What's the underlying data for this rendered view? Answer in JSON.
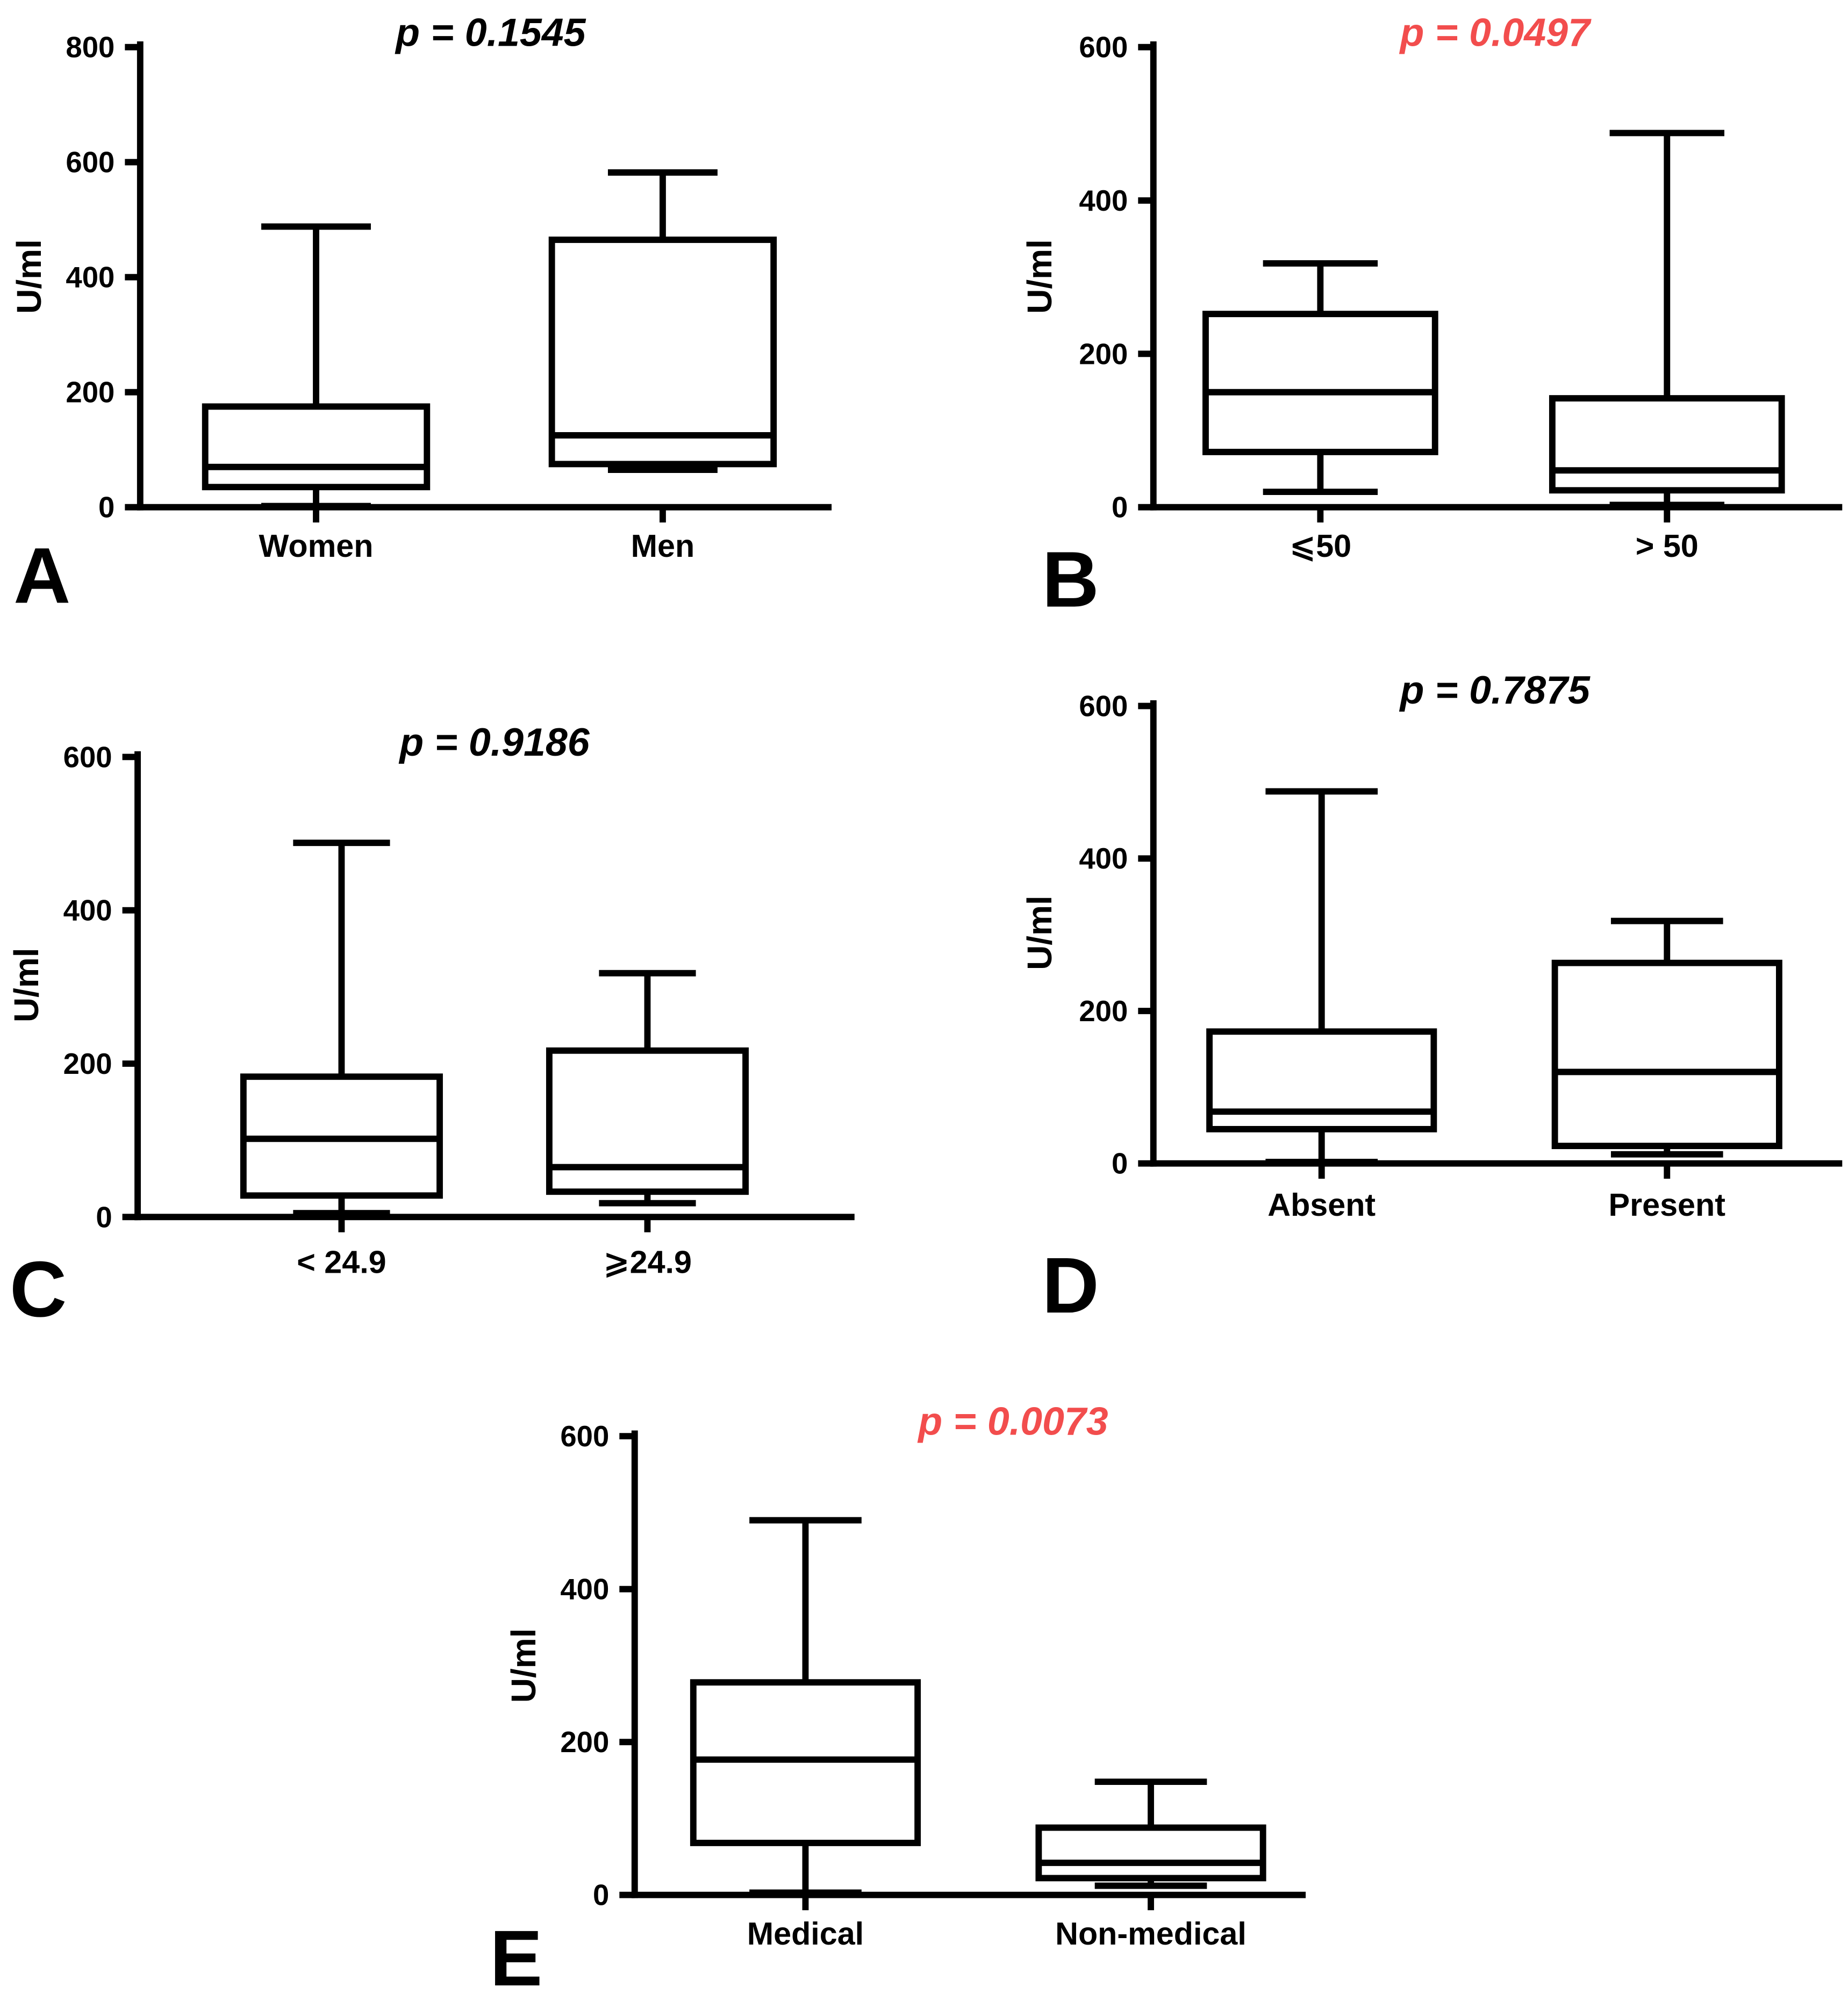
{
  "figure": {
    "text_color": "#000000",
    "significant_color": "#f24d4d"
  },
  "chart_data": [
    {
      "type": "box",
      "panel_label": "A",
      "pvalue": "p = 0.1545",
      "significant": false,
      "ylabel": "U/ml",
      "ylim": [
        0,
        800
      ],
      "yticks": [
        0,
        200,
        400,
        600,
        800
      ],
      "categories": [
        "Women",
        "Men"
      ],
      "boxes": [
        {
          "min": 2,
          "q1": 35,
          "median": 70,
          "q3": 175,
          "max": 488
        },
        {
          "min": 65,
          "q1": 75,
          "median": 125,
          "q3": 465,
          "max": 582
        }
      ]
    },
    {
      "type": "box",
      "panel_label": "B",
      "pvalue": "p = 0.0497",
      "significant": true,
      "ylabel": "U/ml",
      "ylim": [
        0,
        600
      ],
      "yticks": [
        0,
        200,
        400,
        600
      ],
      "categories": [
        "⩽50",
        "> 50"
      ],
      "boxes": [
        {
          "min": 20,
          "q1": 72,
          "median": 150,
          "q3": 252,
          "max": 318
        },
        {
          "min": 3,
          "q1": 22,
          "median": 48,
          "q3": 142,
          "max": 488
        }
      ]
    },
    {
      "type": "box",
      "panel_label": "C",
      "pvalue": "p = 0.9186",
      "significant": false,
      "ylabel": "U/ml",
      "ylim": [
        0,
        600
      ],
      "yticks": [
        0,
        200,
        400,
        600
      ],
      "categories": [
        "< 24.9",
        "⩾24.9"
      ],
      "boxes": [
        {
          "min": 5,
          "q1": 28,
          "median": 102,
          "q3": 183,
          "max": 488
        },
        {
          "min": 18,
          "q1": 33,
          "median": 65,
          "q3": 217,
          "max": 318
        }
      ]
    },
    {
      "type": "box",
      "panel_label": "D",
      "pvalue": "p = 0.7875",
      "significant": false,
      "ylabel": "U/ml",
      "ylim": [
        0,
        600
      ],
      "yticks": [
        0,
        200,
        400,
        600
      ],
      "categories": [
        "Absent",
        "Present"
      ],
      "boxes": [
        {
          "min": 2,
          "q1": 45,
          "median": 68,
          "q3": 173,
          "max": 488
        },
        {
          "min": 12,
          "q1": 23,
          "median": 120,
          "q3": 263,
          "max": 318
        }
      ]
    },
    {
      "type": "box",
      "panel_label": "E",
      "pvalue": "p = 0.0073",
      "significant": true,
      "ylabel": "U/ml",
      "ylim": [
        0,
        600
      ],
      "yticks": [
        0,
        200,
        400,
        600
      ],
      "categories": [
        "Medical",
        "Non-medical"
      ],
      "boxes": [
        {
          "min": 3,
          "q1": 68,
          "median": 177,
          "q3": 278,
          "max": 490
        },
        {
          "min": 12,
          "q1": 22,
          "median": 42,
          "q3": 88,
          "max": 148
        }
      ]
    }
  ]
}
